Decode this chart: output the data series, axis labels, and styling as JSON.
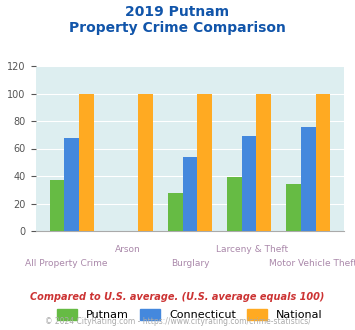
{
  "title_line1": "2019 Putnam",
  "title_line2": "Property Crime Comparison",
  "categories": [
    "All Property Crime",
    "Arson",
    "Burglary",
    "Larceny & Theft",
    "Motor Vehicle Theft"
  ],
  "putnam": [
    37,
    0,
    28,
    39,
    34
  ],
  "connecticut": [
    68,
    0,
    54,
    69,
    76
  ],
  "national": [
    100,
    100,
    100,
    100,
    100
  ],
  "bar_colors": {
    "putnam": "#66bb44",
    "connecticut": "#4488dd",
    "national": "#ffaa22"
  },
  "ylim": [
    0,
    120
  ],
  "yticks": [
    0,
    20,
    40,
    60,
    80,
    100,
    120
  ],
  "xlabel_color": "#aa88aa",
  "title_color": "#1155aa",
  "background_color": "#ddeef0",
  "legend_labels": [
    "Putnam",
    "Connecticut",
    "National"
  ],
  "footnote1": "Compared to U.S. average. (U.S. average equals 100)",
  "footnote2": "© 2024 CityRating.com - https://www.cityrating.com/crime-statistics/",
  "footnote1_color": "#cc3333",
  "footnote2_color": "#aaaaaa"
}
